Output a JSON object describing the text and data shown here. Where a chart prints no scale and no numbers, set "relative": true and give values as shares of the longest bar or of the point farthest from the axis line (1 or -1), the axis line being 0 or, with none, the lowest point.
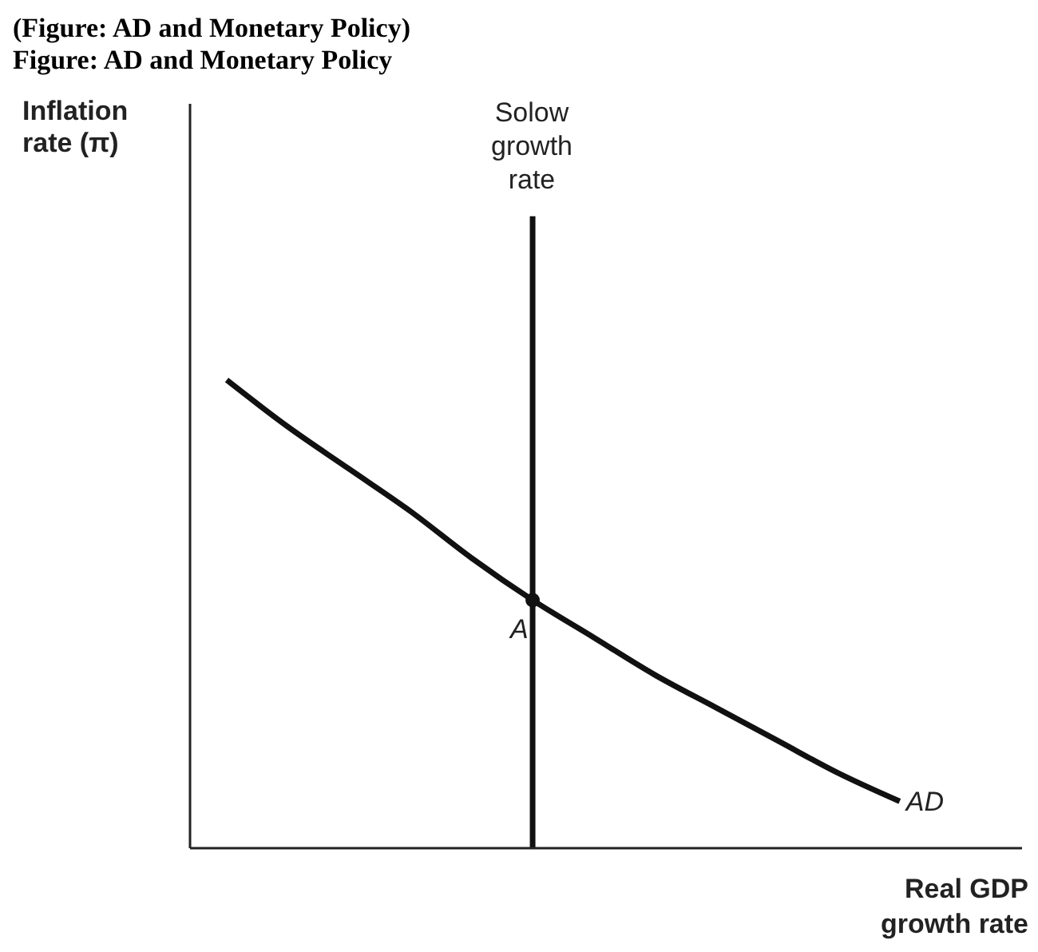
{
  "chart_data": {
    "type": "line",
    "title": "(Figure: AD and Monetary Policy)",
    "subtitle": "Figure: AD and Monetary Policy",
    "xlabel": "Real GDP growth rate",
    "relative": true,
    "categories": [
      null,
      null,
      null,
      null,
      null,
      null,
      null,
      null,
      null,
      null,
      null,
      null
    ],
    "series": [
      {
        "name": "AD",
        "color": "#111111",
        "values": [
          1.0,
          0.9,
          0.81,
          0.72,
          0.62,
          0.53,
          0.45,
          0.37,
          0.3,
          0.23,
          0.16,
          0.1
        ]
      }
    ],
    "annotations": [
      "Inflation rate (π)",
      "Solow growth rate",
      {
        "text": "A",
        "y": 0.53
      }
    ],
    "marker": "none",
    "line_style": "solid",
    "grid": false,
    "legend": false,
    "tick_labels": false
  }
}
